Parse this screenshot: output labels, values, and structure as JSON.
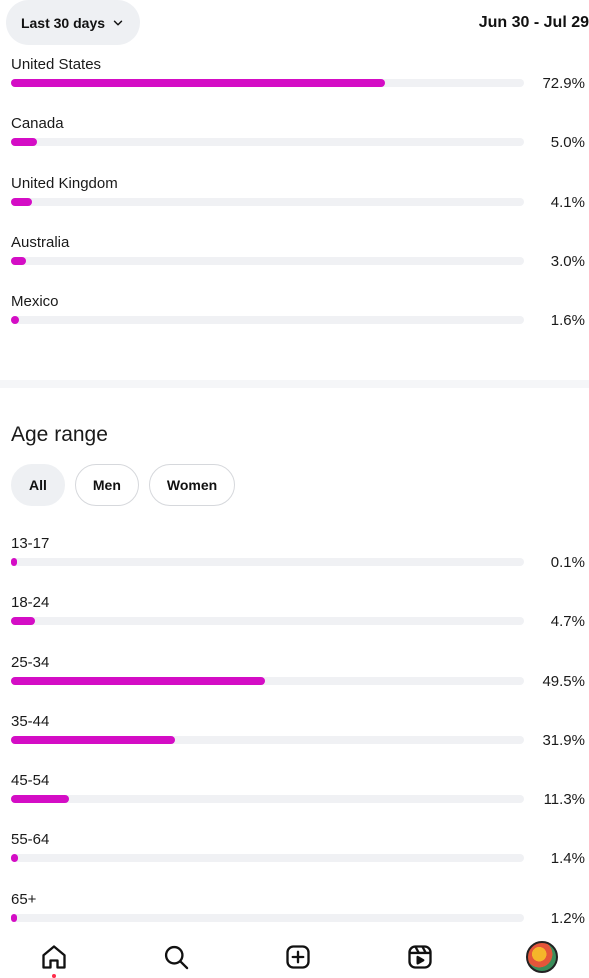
{
  "header": {
    "range_label": "Last 30 days",
    "date_range": "Jun 30 - Jul 29"
  },
  "countries": [
    {
      "label": "United States",
      "value": 72.9,
      "pct": "72.9%"
    },
    {
      "label": "Canada",
      "value": 5.0,
      "pct": "5.0%"
    },
    {
      "label": "United Kingdom",
      "value": 4.1,
      "pct": "4.1%"
    },
    {
      "label": "Australia",
      "value": 3.0,
      "pct": "3.0%"
    },
    {
      "label": "Mexico",
      "value": 1.6,
      "pct": "1.6%"
    }
  ],
  "age": {
    "title": "Age range",
    "chips": [
      {
        "label": "All",
        "active": true
      },
      {
        "label": "Men",
        "active": false
      },
      {
        "label": "Women",
        "active": false
      }
    ],
    "rows": [
      {
        "label": "13-17",
        "value": 0.1,
        "pct": "0.1%"
      },
      {
        "label": "18-24",
        "value": 4.7,
        "pct": "4.7%"
      },
      {
        "label": "25-34",
        "value": 49.5,
        "pct": "49.5%"
      },
      {
        "label": "35-44",
        "value": 31.9,
        "pct": "31.9%"
      },
      {
        "label": "45-54",
        "value": 11.3,
        "pct": "11.3%"
      },
      {
        "label": "55-64",
        "value": 1.4,
        "pct": "1.4%"
      },
      {
        "label": "65+",
        "value": 1.2,
        "pct": "1.2%"
      }
    ]
  },
  "colors": {
    "bar_fill": "#d40dc5",
    "bar_track": "#f0f1f4"
  },
  "nav": {
    "items": [
      "home-icon",
      "search-icon",
      "create-icon",
      "reels-icon",
      "profile-avatar"
    ]
  }
}
